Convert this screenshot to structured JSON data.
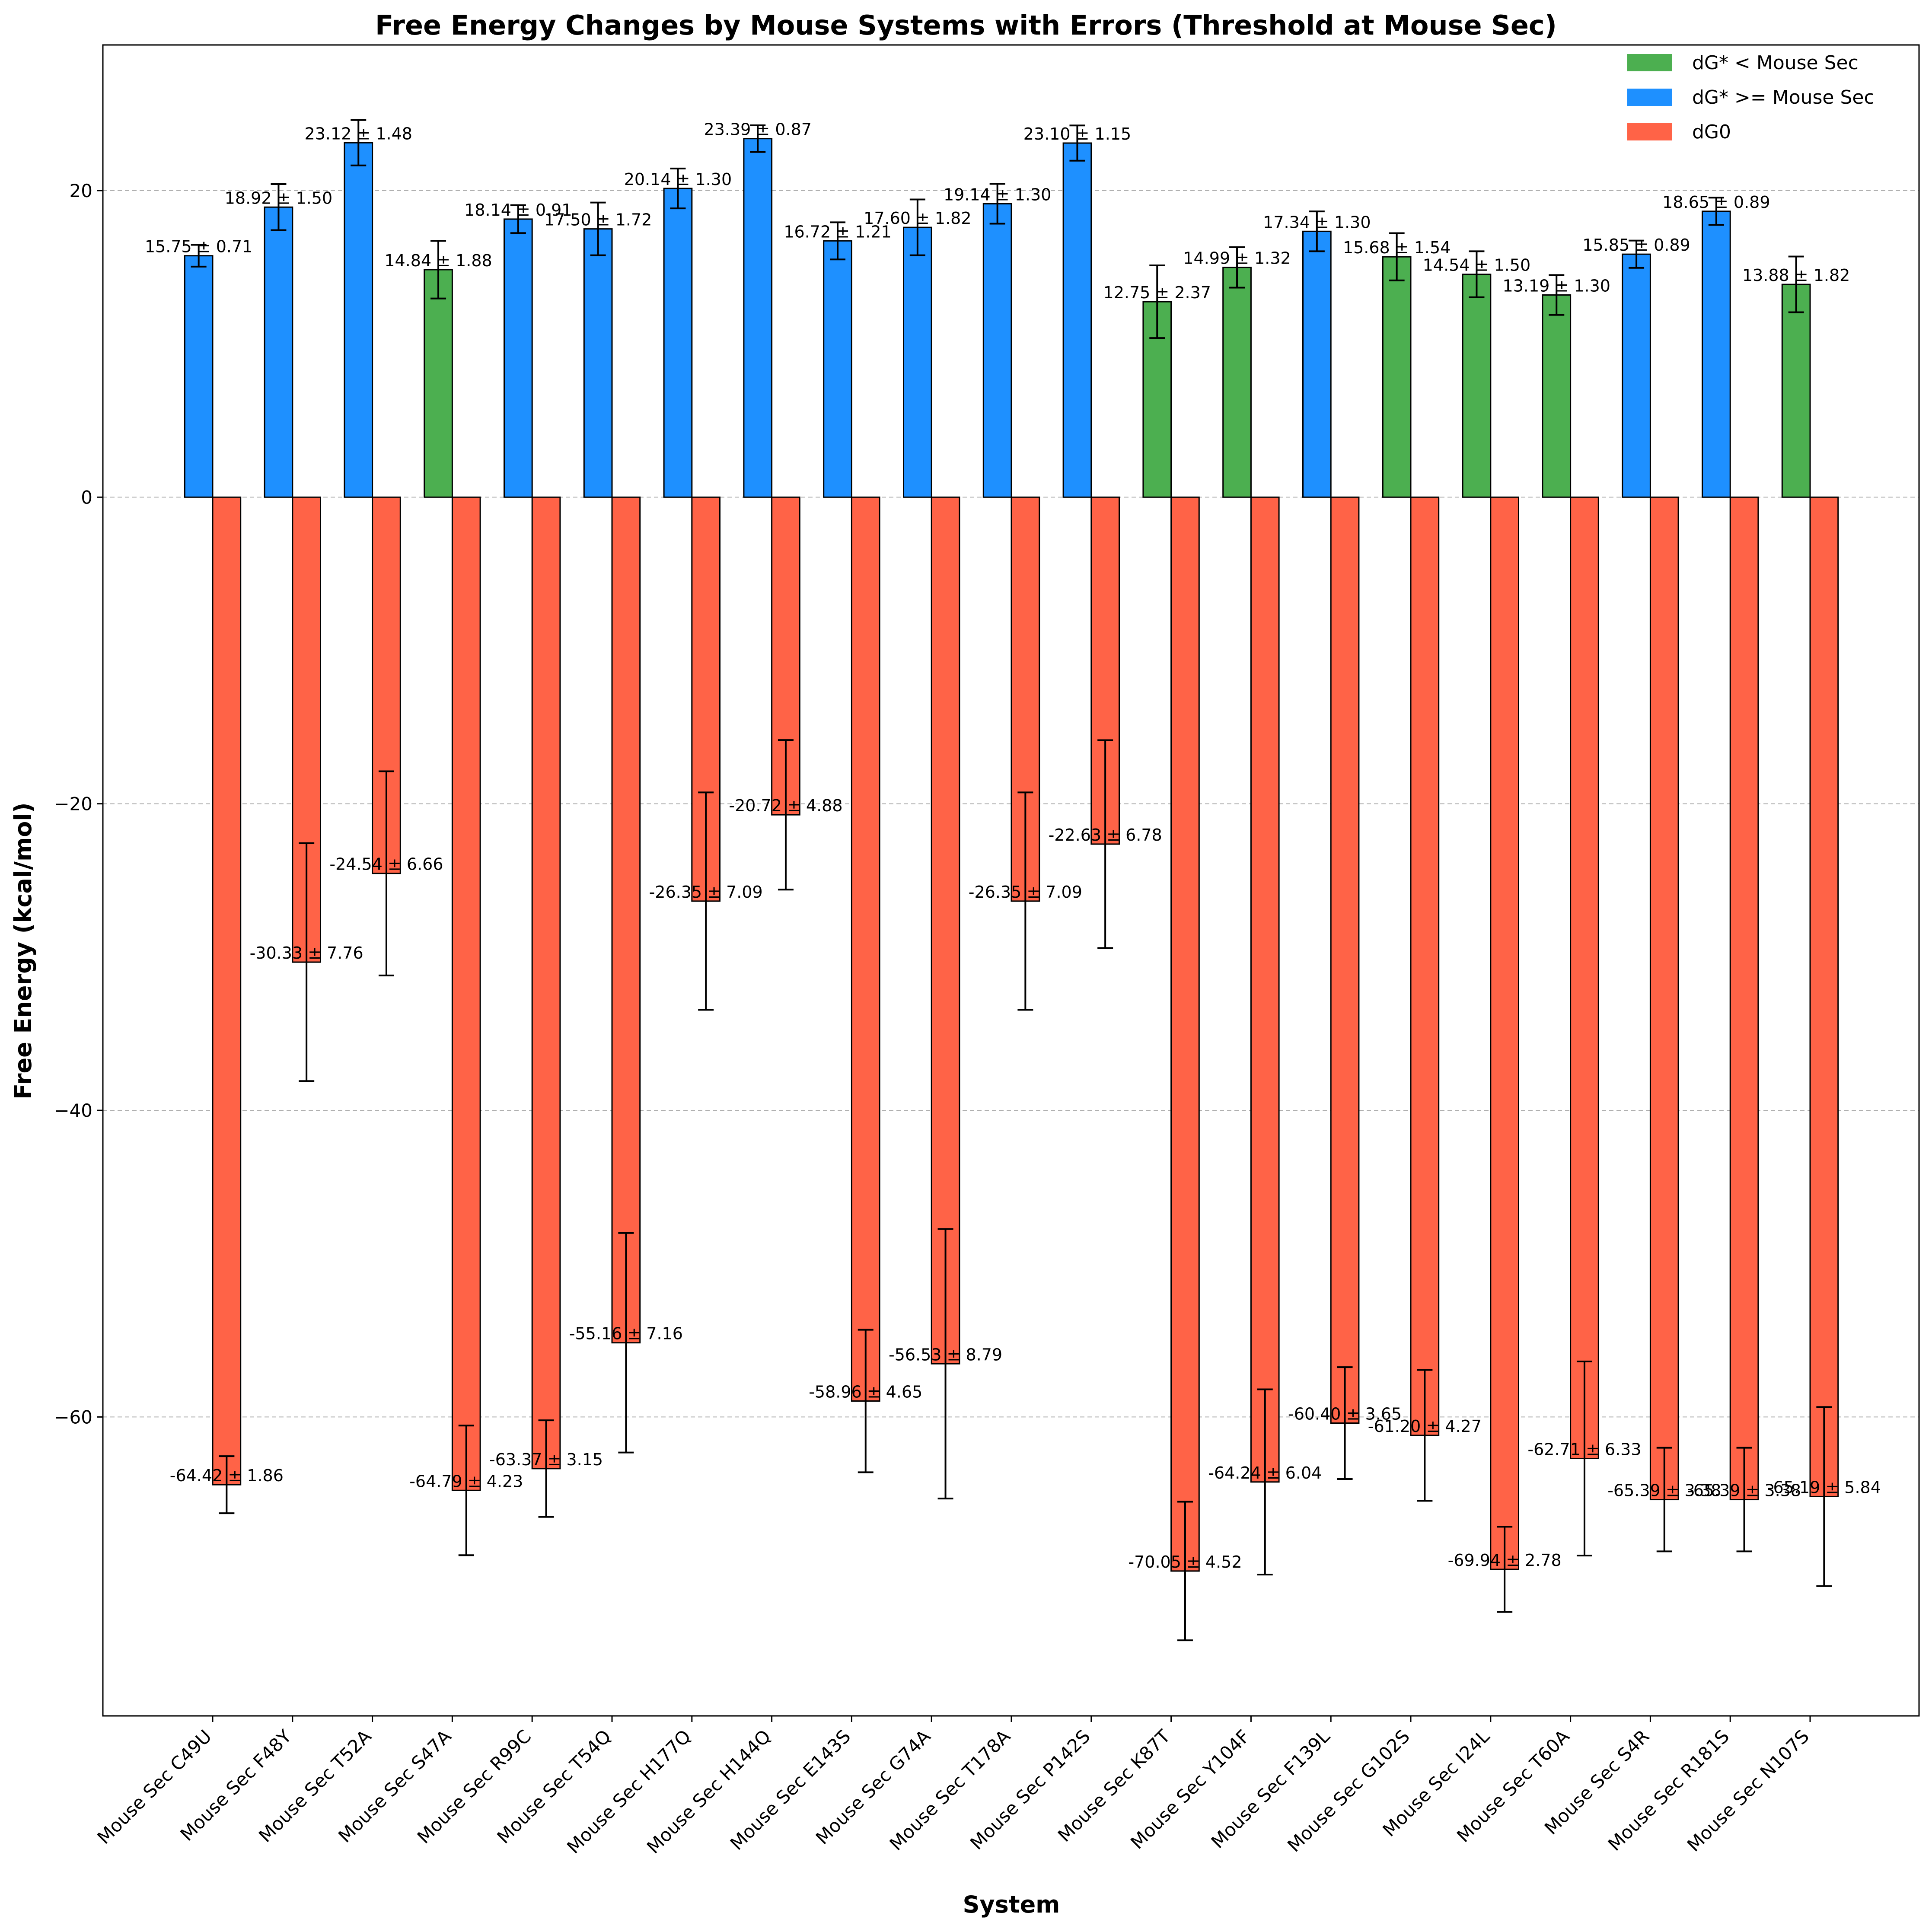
{
  "chart_data": {
    "type": "bar",
    "title": "Free Energy Changes by Mouse Systems with Errors (Threshold at Mouse Sec)",
    "xlabel": "System",
    "ylabel": "Free Energy (kcal/mol)",
    "ylim": [
      -79.5,
      29.5
    ],
    "yticks": [
      -60,
      -40,
      -20,
      0,
      20
    ],
    "grid": "y-dashed",
    "legend_position": "top-right",
    "colors": {
      "below": "#4caf50",
      "above": "#1e90ff",
      "dg0": "#ff6347"
    },
    "legend": [
      {
        "label": "dG* < Mouse Sec",
        "color_key": "below"
      },
      {
        "label": "dG* >= Mouse Sec",
        "color_key": "above"
      },
      {
        "label": "dG0",
        "color_key": "dg0"
      }
    ],
    "categories": [
      "Mouse Sec C49U",
      "Mouse Sec F48Y",
      "Mouse Sec T52A",
      "Mouse Sec  S47A",
      "Mouse Sec  R99C",
      "Mouse Sec T54Q",
      "Mouse Sec H177Q",
      "Mouse Sec H144Q",
      "Mouse Sec  E143S",
      "Mouse Sec G74A",
      "Mouse Sec  T178A",
      "Mouse Sec P142S",
      "Mouse Sec K87T",
      "Mouse Sec Y104F",
      "Mouse Sec  F139L",
      "Mouse Sec  G102S",
      "Mouse Sec I24L",
      "Mouse Sec  T60A",
      "Mouse Sec  S4R",
      "Mouse Sec R181S",
      "Mouse Sec N107S"
    ],
    "series": [
      {
        "name": "dG*",
        "values": [
          15.75,
          18.92,
          23.12,
          14.84,
          18.14,
          17.5,
          20.14,
          23.39,
          16.72,
          17.6,
          19.14,
          23.1,
          12.75,
          14.99,
          17.34,
          15.68,
          14.54,
          13.19,
          15.85,
          18.65,
          13.88
        ],
        "errors": [
          0.71,
          1.5,
          1.48,
          1.88,
          0.91,
          1.72,
          1.3,
          0.87,
          1.21,
          1.82,
          1.3,
          1.15,
          2.37,
          1.32,
          1.3,
          1.54,
          1.5,
          1.3,
          0.89,
          0.89,
          1.82
        ],
        "color_groups": [
          "above",
          "above",
          "above",
          "below",
          "above",
          "above",
          "above",
          "above",
          "above",
          "above",
          "above",
          "above",
          "below",
          "below",
          "above",
          "below",
          "below",
          "below",
          "above",
          "above",
          "below"
        ],
        "labels": [
          "15.75 ± 0.71",
          "18.92 ± 1.50",
          "23.12 ± 1.48",
          "14.84 ± 1.88",
          "18.14 ± 0.91",
          "17.50 ± 1.72",
          "20.14 ± 1.30",
          "23.39 ± 0.87",
          "16.72 ± 1.21",
          "17.60 ± 1.82",
          "19.14 ± 1.30",
          "23.10 ± 1.15",
          "12.75 ± 2.37",
          "14.99 ± 1.32",
          "17.34 ± 1.30",
          "15.68 ± 1.54",
          "14.54 ± 1.50",
          "13.19 ± 1.30",
          "15.85 ± 0.89",
          "18.65 ± 0.89",
          "13.88 ± 1.82"
        ]
      },
      {
        "name": "dG0",
        "values": [
          -64.42,
          -30.33,
          -24.54,
          -64.79,
          -63.37,
          -55.16,
          -26.35,
          -20.72,
          -58.96,
          -56.53,
          -26.35,
          -22.63,
          -70.05,
          -64.24,
          -60.4,
          -61.2,
          -69.94,
          -62.71,
          -65.39,
          -65.39,
          -65.19
        ],
        "errors": [
          1.86,
          7.76,
          6.66,
          4.23,
          3.15,
          7.16,
          7.09,
          4.88,
          4.65,
          8.79,
          7.09,
          6.78,
          4.52,
          6.04,
          3.65,
          4.27,
          2.78,
          6.33,
          3.38,
          3.38,
          5.84
        ],
        "labels": [
          "-64.42 ± 1.86",
          "-30.33 ± 7.76",
          "-24.54 ± 6.66",
          "-64.79 ± 4.23",
          "-63.37 ± 3.15",
          "-55.16 ± 7.16",
          "-26.35 ± 7.09",
          "-20.72 ± 4.88",
          "-58.96 ± 4.65",
          "-56.53 ± 8.79",
          "-26.35 ± 7.09",
          "-22.63 ± 6.78",
          "-70.05 ± 4.52",
          "-64.24 ± 6.04",
          "-60.40 ± 3.65",
          "-61.20 ± 4.27",
          "-69.94 ± 2.78",
          "-62.71 ± 6.33",
          "-65.39 ± 3.38",
          "-65.39 ± 3.38",
          "-65.19 ± 5.84"
        ]
      }
    ]
  }
}
